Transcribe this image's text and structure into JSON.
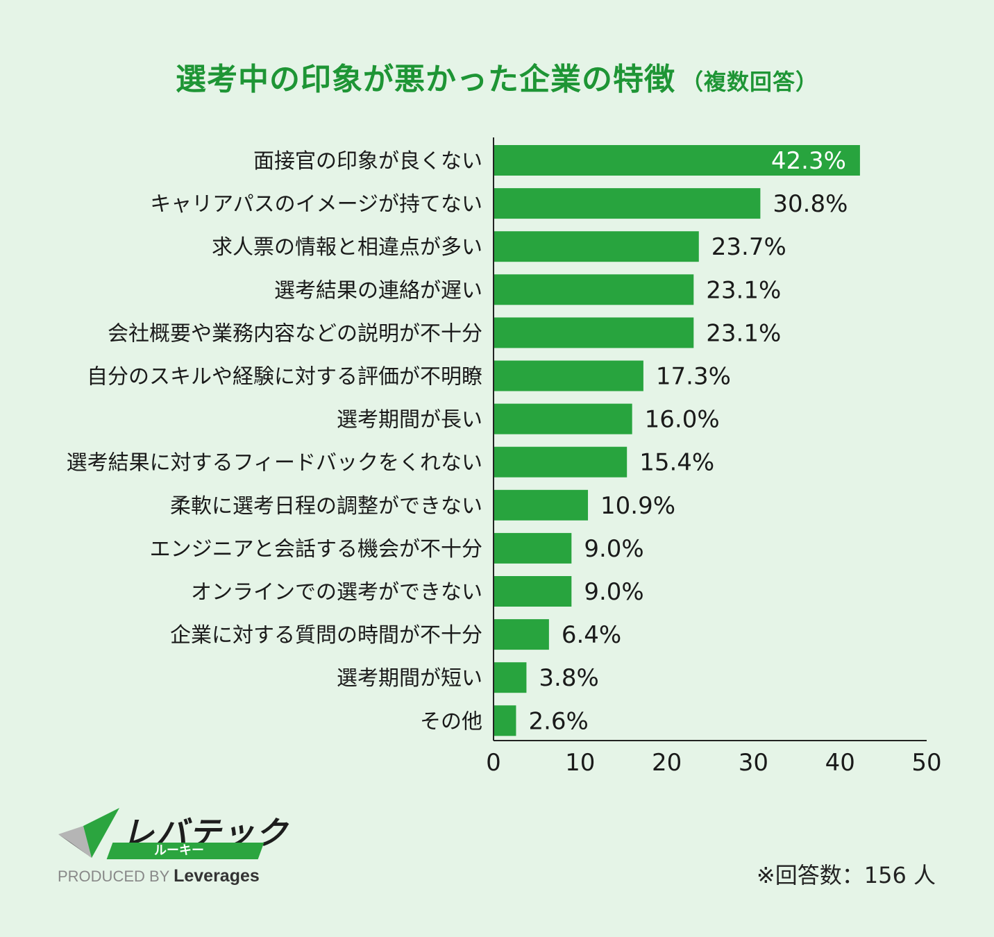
{
  "title": "選考中の印象が悪かった企業の特徴",
  "title_note": "（複数回答）",
  "colors": {
    "bar": "#28a43e",
    "title": "#1e9535",
    "background": "#e5f4e7",
    "text": "#1a1a1a"
  },
  "chart_data": {
    "type": "bar",
    "orientation": "horizontal",
    "title": "選考中の印象が悪かった企業の特徴（複数回答）",
    "categories": [
      "面接官の印象が良くない",
      "キャリアパスのイメージが持てない",
      "求人票の情報と相違点が多い",
      "選考結果の連絡が遅い",
      "会社概要や業務内容などの説明が不十分",
      "自分のスキルや経験に対する評価が不明瞭",
      "選考期間が長い",
      "選考結果に対するフィードバックをくれない",
      "柔軟に選考日程の調整ができない",
      "エンジニアと会話する機会が不十分",
      "オンラインでの選考ができない",
      "企業に対する質問の時間が不十分",
      "選考期間が短い",
      "その他"
    ],
    "values": [
      42.3,
      30.8,
      23.7,
      23.1,
      23.1,
      17.3,
      16.0,
      15.4,
      10.9,
      9.0,
      9.0,
      6.4,
      3.8,
      2.6
    ],
    "value_labels": [
      "42.3%",
      "30.8%",
      "23.7%",
      "23.1%",
      "23.1%",
      "17.3%",
      "16.0%",
      "15.4%",
      "10.9%",
      "9.0%",
      "9.0%",
      "6.4%",
      "3.8%",
      "2.6%"
    ],
    "xlim": [
      0,
      50
    ],
    "xticks": [
      "0",
      "10",
      "20",
      "30",
      "40",
      "50"
    ],
    "grid": false,
    "legend": "none"
  },
  "footnote": "※回答数：156 人",
  "logo": {
    "wordmark": "レバテック",
    "sub": "ルーキー",
    "produced_by": "PRODUCED BY",
    "brand": "Leverages"
  }
}
